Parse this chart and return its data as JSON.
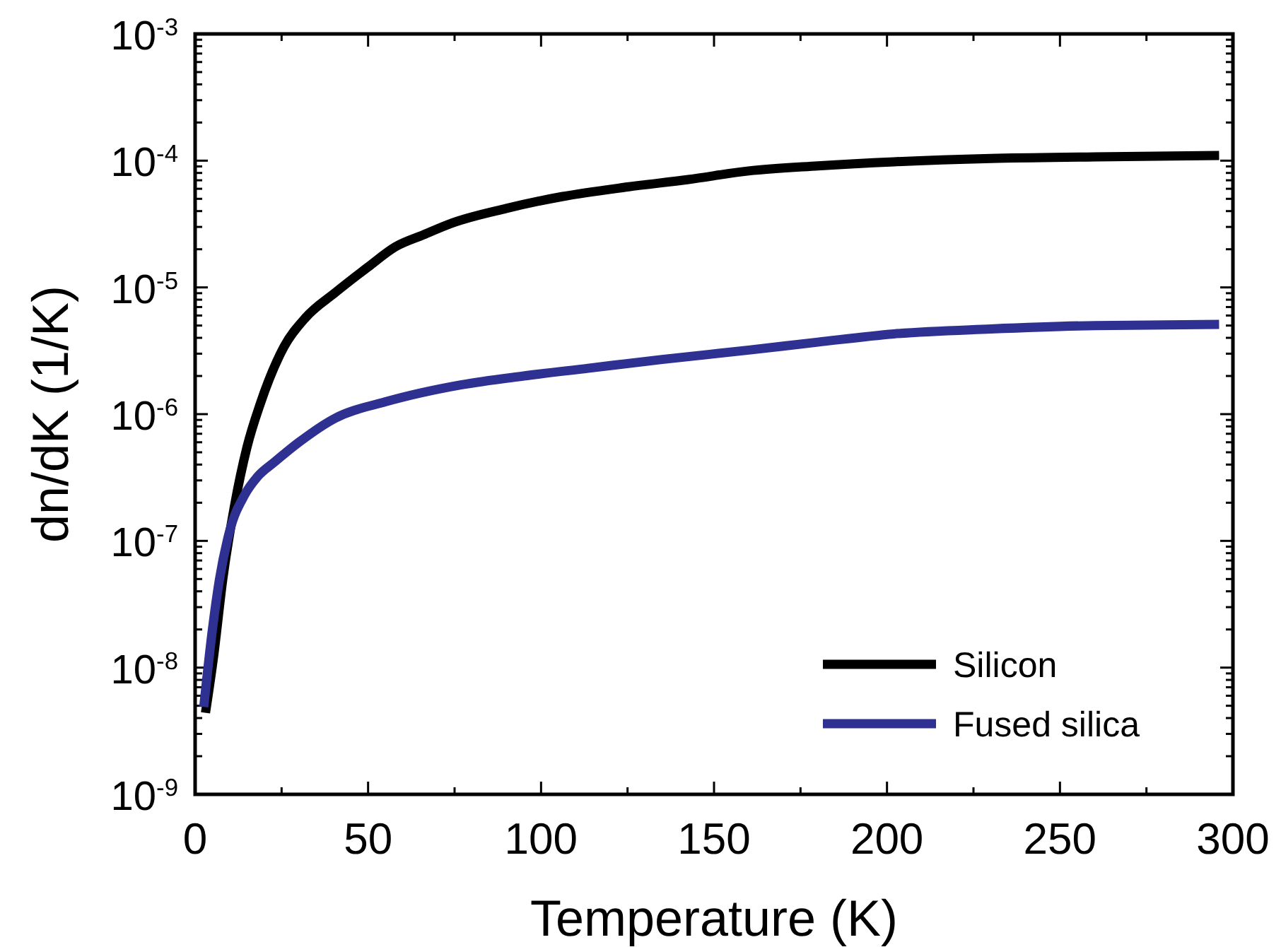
{
  "chart_data": {
    "type": "line",
    "xlabel": "Temperature (K)",
    "ylabel": "dn/dK (1/K)",
    "log": "y",
    "xlim": [
      0,
      300
    ],
    "ylim": [
      1e-09,
      0.001
    ],
    "xticks": [
      0,
      {
        "value": 25,
        "label": null
      },
      50,
      {
        "value": 75,
        "label": null
      },
      100,
      {
        "value": 125,
        "label": null
      },
      150,
      {
        "value": 175,
        "label": null
      },
      200,
      {
        "value": 225,
        "label": null
      },
      250,
      {
        "value": 275,
        "label": null
      },
      300
    ],
    "yticks": [
      {
        "value": 1e-09,
        "label": "10$^{-9}$"
      },
      {
        "value": 2e-09,
        "label": null
      },
      {
        "value": 3e-09,
        "label": null
      },
      {
        "value": 4e-09,
        "label": null
      },
      {
        "value": 5e-09,
        "label": null
      },
      {
        "value": 6e-09,
        "label": null
      },
      {
        "value": 7e-09,
        "label": null
      },
      {
        "value": 8e-09,
        "label": null
      },
      {
        "value": 9e-09,
        "label": null
      },
      {
        "value": 1e-08,
        "label": "10$^{-8}$"
      },
      {
        "value": 2e-08,
        "label": null
      },
      {
        "value": 3e-08,
        "label": null
      },
      {
        "value": 4e-08,
        "label": null
      },
      {
        "value": 5e-08,
        "label": null
      },
      {
        "value": 6e-08,
        "label": null
      },
      {
        "value": 7e-08,
        "label": null
      },
      {
        "value": 8e-08,
        "label": null
      },
      {
        "value": 9e-08,
        "label": null
      },
      {
        "value": 1e-07,
        "label": "10$^{-7}$"
      },
      {
        "value": 2e-07,
        "label": null
      },
      {
        "value": 3e-07,
        "label": null
      },
      {
        "value": 4e-07,
        "label": null
      },
      {
        "value": 5e-07,
        "label": null
      },
      {
        "value": 6e-07,
        "label": null
      },
      {
        "value": 7e-07,
        "label": null
      },
      {
        "value": 8e-07,
        "label": null
      },
      {
        "value": 9e-07,
        "label": null
      },
      {
        "value": 1e-06,
        "label": "10$^{-6}$"
      },
      {
        "value": 2e-06,
        "label": null
      },
      {
        "value": 3e-06,
        "label": null
      },
      {
        "value": 4e-06,
        "label": null
      },
      {
        "value": 5e-06,
        "label": null
      },
      {
        "value": 6e-06,
        "label": null
      },
      {
        "value": 7e-06,
        "label": null
      },
      {
        "value": 8e-06,
        "label": null
      },
      {
        "value": 9e-06,
        "label": null
      },
      {
        "value": 1e-05,
        "label": "10$^{-5}$"
      },
      {
        "value": 2e-05,
        "label": null
      },
      {
        "value": 3e-05,
        "label": null
      },
      {
        "value": 4e-05,
        "label": null
      },
      {
        "value": 5e-05,
        "label": null
      },
      {
        "value": 6e-05,
        "label": null
      },
      {
        "value": 7e-05,
        "label": null
      },
      {
        "value": 8e-05,
        "label": null
      },
      {
        "value": 9e-05,
        "label": null
      },
      {
        "value": 0.0001,
        "label": "10$^{-4}$"
      },
      {
        "value": 0.0002,
        "label": null
      },
      {
        "value": 0.0003,
        "label": null
      },
      {
        "value": 0.0004,
        "label": null
      },
      {
        "value": 0.0005,
        "label": null
      },
      {
        "value": 0.0006,
        "label": null
      },
      {
        "value": 0.0007,
        "label": null
      },
      {
        "value": 0.0008,
        "label": null
      },
      {
        "value": 0.0009,
        "label": null
      },
      {
        "value": 0.001,
        "label": "10$^{-3}$"
      }
    ],
    "grid": false,
    "legend": "bottom right",
    "line_style": "solid",
    "marker": "none",
    "series": [
      {
        "name": "Silicon",
        "color": "#000000",
        "x": [
          3,
          5.3,
          8,
          11.4,
          15,
          18.8,
          25.7,
          32,
          40.5,
          50,
          58,
          66,
          74,
          90,
          106,
          125,
          142.6,
          160,
          180,
          202,
          230,
          260,
          296
        ],
        "values": [
          4.4e-09,
          1.2e-08,
          5e-08,
          1.9e-07,
          5.5e-07,
          1.2e-06,
          3.4e-06,
          5.8e-06,
          9.1e-06,
          1.45e-05,
          2.1e-05,
          2.6e-05,
          3.2e-05,
          4.2e-05,
          5.2e-05,
          6.2e-05,
          7.1e-05,
          8.3e-05,
          9.1e-05,
          9.8e-05,
          0.000104,
          0.000107,
          0.00011
        ]
      },
      {
        "name": "Fused silica",
        "color": "#2e3192",
        "x": [
          2.5,
          5,
          7,
          10,
          14.3,
          18,
          23,
          30,
          40.5,
          55,
          76.8,
          95,
          113.6,
          135,
          160,
          180,
          202,
          230,
          260,
          296
        ],
        "values": [
          4.9e-09,
          2e-08,
          4.9e-08,
          1.2e-07,
          2.3e-07,
          3.2e-07,
          4.2e-07,
          6e-07,
          9.3e-07,
          1.25e-06,
          1.7e-06,
          2e-06,
          2.3e-06,
          2.7e-06,
          3.2e-06,
          3.7e-06,
          4.3e-06,
          4.7e-06,
          5e-06,
          5.1e-06
        ]
      }
    ]
  }
}
